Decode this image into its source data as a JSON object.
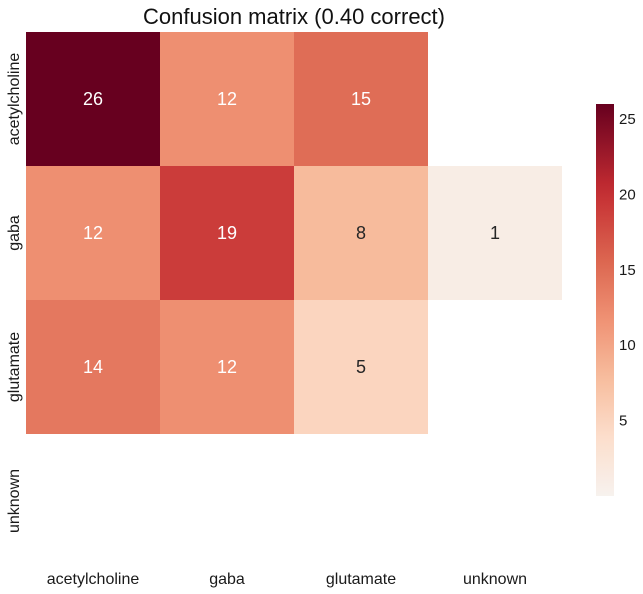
{
  "chart_data": {
    "type": "heatmap",
    "title": "Confusion matrix (0.40 correct)",
    "xlabel": "",
    "ylabel": "",
    "x_categories": [
      "acetylcholine",
      "gaba",
      "glutamate",
      "unknown"
    ],
    "y_categories": [
      "acetylcholine",
      "gaba",
      "glutamate",
      "unknown"
    ],
    "values": [
      [
        26,
        12,
        15,
        null
      ],
      [
        12,
        19,
        8,
        1
      ],
      [
        14,
        12,
        5,
        null
      ],
      [
        null,
        null,
        null,
        null
      ]
    ],
    "colorbar": {
      "vmin": 0,
      "vmax": 26,
      "ticks": [
        5,
        10,
        15,
        20,
        25
      ],
      "colormap": "Reds-diverging-half",
      "low_color": "#f7f2ee",
      "high_color": "#67001f"
    },
    "grid": false
  }
}
